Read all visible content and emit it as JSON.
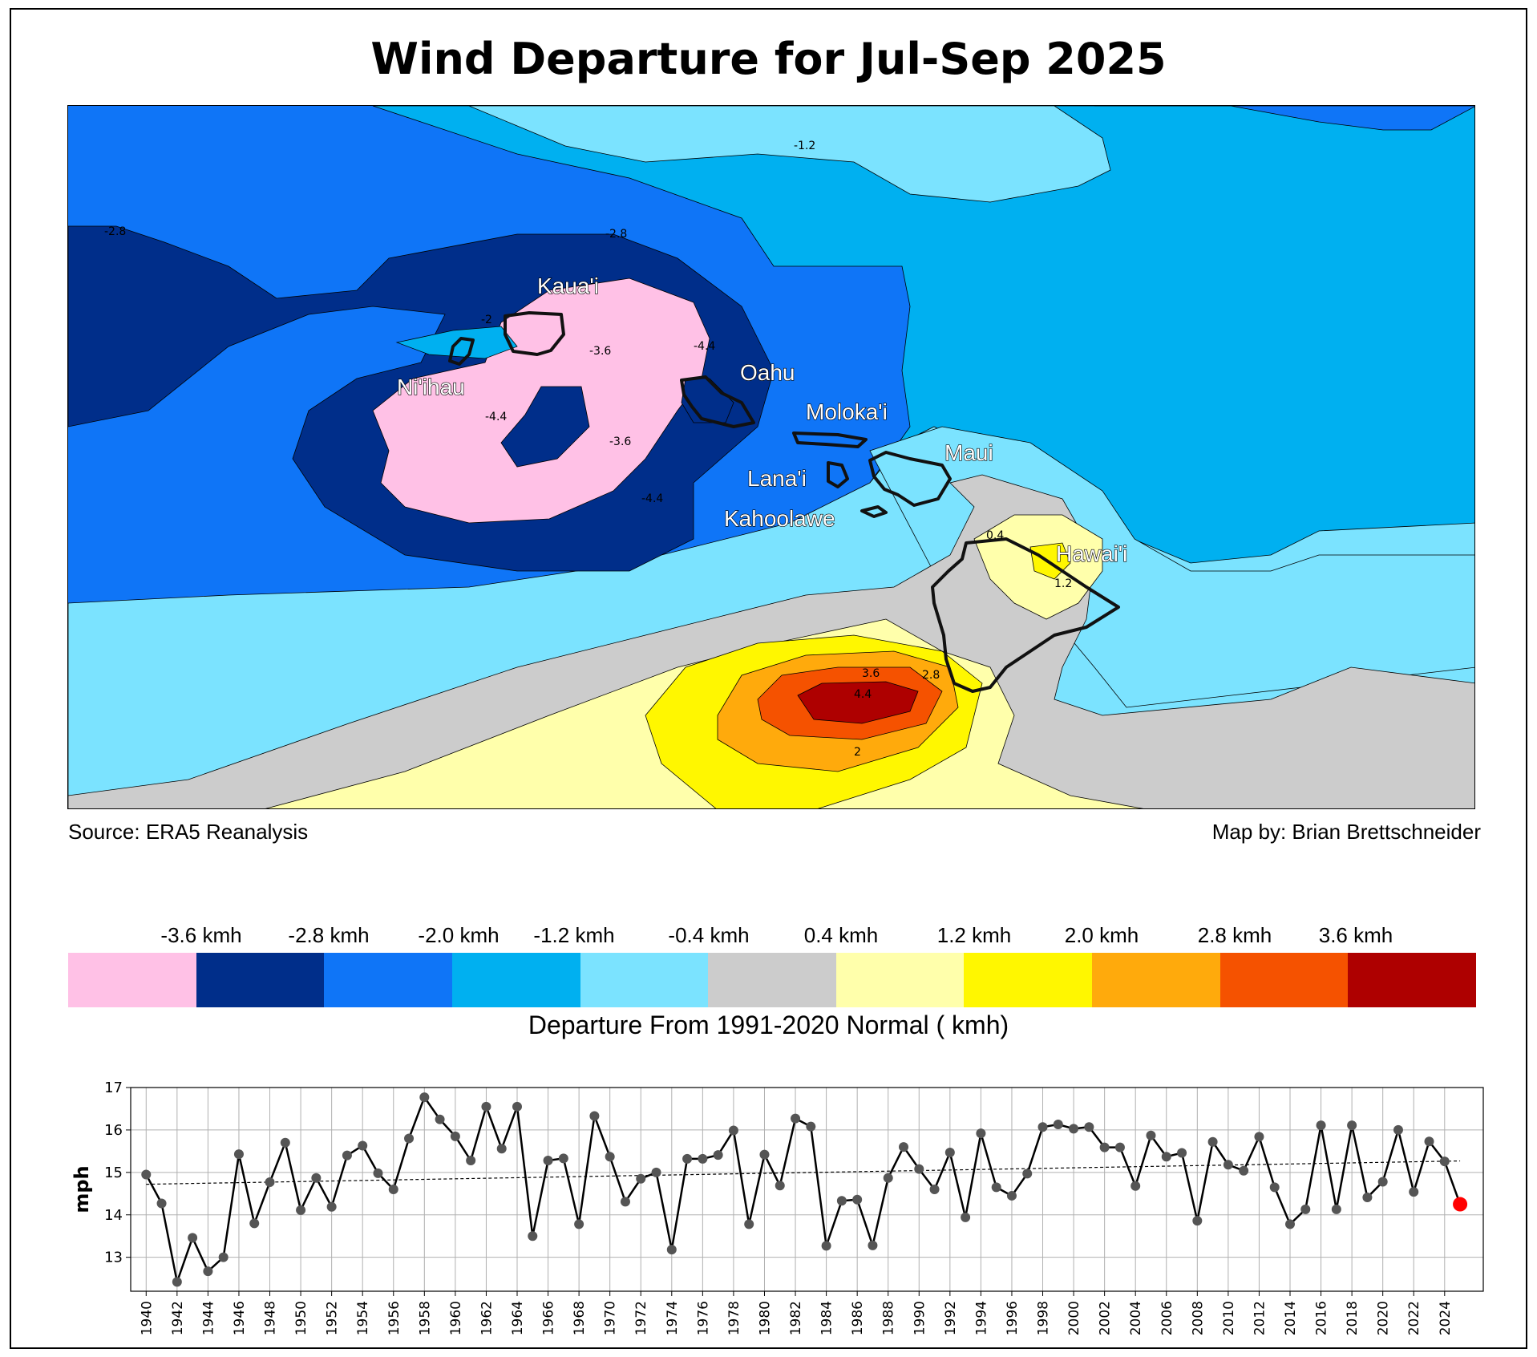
{
  "title": "Wind Departure for Jul-Sep 2025",
  "source": "Source: ERA5 Reanalysis",
  "credit": "Map by: Brian Brettschneider",
  "colorbar": {
    "label": "Departure From 1991-2020 Normal ( kmh)",
    "ticks": [
      "-3.6 kmh",
      "-2.8 kmh",
      "-2.0 kmh",
      "-1.2 kmh",
      "-0.4 kmh",
      "0.4 kmh",
      "1.2 kmh",
      "2.0 kmh",
      "2.8 kmh",
      "3.6 kmh"
    ],
    "colors": [
      "#ffc1e6",
      "#002e8a",
      "#0f75f7",
      "#00b0f0",
      "#7be3ff",
      "#cccccc",
      "#ffffab",
      "#fff700",
      "#ffaa0c",
      "#f55200",
      "#ae0000"
    ]
  },
  "map": {
    "islands": [
      "Kaua'i",
      "Ni'ihau",
      "Oahu",
      "Moloka'i",
      "Lana'i",
      "Maui",
      "Kahoolawe",
      "Hawai'i"
    ],
    "contour_labels": [
      "-1.2",
      "-2.8",
      "-2.8",
      "-2",
      "-3.6",
      "-4.4",
      "-4.4",
      "-3.6",
      "-4.4",
      "0.4",
      "1.2",
      "3.6",
      "2.8",
      "4.4",
      "2"
    ]
  },
  "chart_data": {
    "type": "line",
    "ylabel": "mph",
    "ylim": [
      12.2,
      17
    ],
    "yticks": [
      13,
      14,
      15,
      16,
      17
    ],
    "xlim": [
      1939,
      2026.5
    ],
    "grid": true,
    "x": [
      1940,
      1941,
      1942,
      1943,
      1944,
      1945,
      1946,
      1947,
      1948,
      1949,
      1950,
      1951,
      1952,
      1953,
      1954,
      1955,
      1956,
      1957,
      1958,
      1959,
      1960,
      1961,
      1962,
      1963,
      1964,
      1965,
      1966,
      1967,
      1968,
      1969,
      1970,
      1971,
      1972,
      1973,
      1974,
      1975,
      1976,
      1977,
      1978,
      1979,
      1980,
      1981,
      1982,
      1983,
      1984,
      1985,
      1986,
      1987,
      1988,
      1989,
      1990,
      1991,
      1992,
      1993,
      1994,
      1995,
      1996,
      1997,
      1998,
      1999,
      2000,
      2001,
      2002,
      2003,
      2004,
      2005,
      2006,
      2007,
      2008,
      2009,
      2010,
      2011,
      2012,
      2013,
      2014,
      2015,
      2016,
      2017,
      2018,
      2019,
      2020,
      2021,
      2022,
      2023,
      2024,
      2025
    ],
    "series": [
      {
        "values": [
          14.95,
          14.27,
          12.42,
          13.46,
          12.67,
          13.0,
          15.43,
          13.8,
          14.77,
          15.7,
          14.11,
          14.87,
          14.19,
          15.4,
          15.63,
          14.98,
          14.6,
          15.8,
          16.77,
          16.25,
          15.85,
          15.28,
          16.55,
          15.56,
          16.55,
          13.5,
          15.28,
          15.33,
          13.78,
          16.33,
          15.37,
          14.31,
          14.85,
          15.0,
          13.18,
          15.32,
          15.32,
          15.41,
          15.99,
          13.78,
          15.42,
          14.69,
          16.27,
          16.08,
          13.27,
          14.33,
          14.36,
          13.28,
          14.87,
          15.6,
          15.08,
          14.6,
          15.47,
          13.94,
          15.92,
          14.65,
          14.45,
          14.97,
          16.07,
          16.13,
          16.03,
          16.07,
          15.59,
          15.59,
          14.68,
          15.87,
          15.37,
          15.46,
          13.86,
          15.72,
          15.18,
          15.04,
          15.84,
          14.65,
          13.78,
          14.13,
          16.11,
          14.13,
          16.11,
          14.41,
          14.78,
          16.0,
          14.54,
          15.73,
          15.26,
          14.25
        ]
      }
    ],
    "trend": {
      "start": 14.72,
      "end": 15.27
    },
    "xticks": [
      1940,
      1942,
      1944,
      1946,
      1948,
      1950,
      1952,
      1954,
      1956,
      1958,
      1960,
      1962,
      1964,
      1966,
      1968,
      1970,
      1972,
      1974,
      1976,
      1978,
      1980,
      1982,
      1984,
      1986,
      1988,
      1990,
      1992,
      1994,
      1996,
      1998,
      2000,
      2002,
      2004,
      2006,
      2008,
      2010,
      2012,
      2014,
      2016,
      2018,
      2020,
      2022,
      2024
    ],
    "highlight": {
      "x": 2025,
      "color": "#ff0000"
    },
    "marker_color": "#555555"
  }
}
